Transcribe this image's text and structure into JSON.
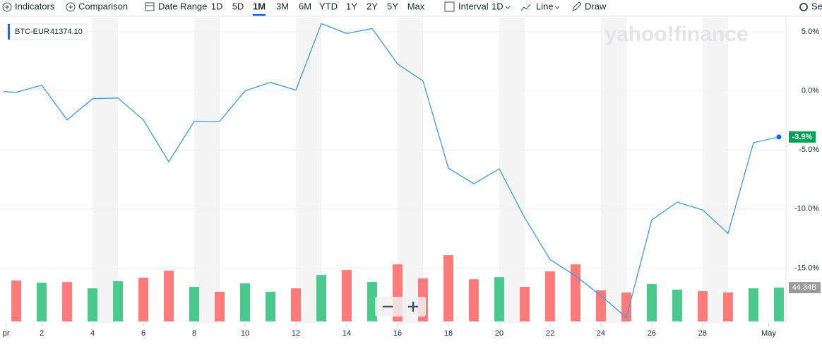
{
  "toolbar": {
    "indicators": "Indicators",
    "comparison": "Comparison",
    "date_range": "Date Range",
    "ranges": [
      "1D",
      "5D",
      "1M",
      "3M",
      "6M",
      "YTD",
      "1Y",
      "2Y",
      "5Y",
      "Max"
    ],
    "active_range": 2,
    "interval": "Interval",
    "interval_value": "1D",
    "line": "Line",
    "draw": "Draw",
    "settings": "Se"
  },
  "legend": {
    "symbol": "BTC-EUR",
    "price": "41374.10"
  },
  "watermark": "yahoo!finance",
  "chart_data": {
    "type": "line",
    "color": "#3d9be9",
    "x": [
      0.5,
      1,
      2,
      3,
      4,
      5,
      6,
      7,
      8,
      9,
      10,
      11,
      12,
      13,
      14,
      15,
      16,
      17,
      18,
      19,
      20,
      21,
      22,
      23,
      24,
      25,
      26,
      27,
      28,
      29,
      30,
      31
    ],
    "values": [
      -0.06,
      -0.12,
      0.48,
      -2.46,
      -0.66,
      -0.6,
      -2.46,
      -6.0,
      -2.58,
      -2.58,
      0,
      0.72,
      0.06,
      5.7,
      4.86,
      5.28,
      2.28,
      0.84,
      -6.54,
      -7.86,
      -6.6,
      -10.74,
      -14.28,
      -15.66,
      -17.34,
      -19.2,
      -10.92,
      -9.42,
      -10.08,
      -12.06,
      -4.38,
      -3.9
    ],
    "current": {
      "value": -3.9,
      "label": "-3.9%"
    },
    "xlim": [
      0.36,
      31.28
    ],
    "xticks": [
      {
        "value": 0.6,
        "label": "pr"
      },
      2,
      4,
      6,
      8,
      10,
      12,
      14,
      16,
      18,
      20,
      22,
      24,
      26,
      28,
      {
        "value": 30.6,
        "label": "May"
      }
    ],
    "ylim": [
      -19.7,
      6.2
    ],
    "yticks": [
      {
        "value": 5,
        "label": "5.0%"
      },
      {
        "value": 0,
        "label": "0.0%"
      },
      {
        "value": -5,
        "label": "-5.0%"
      },
      {
        "value": -10,
        "label": "-10.0%"
      },
      {
        "value": -15,
        "label": "-15.0%"
      }
    ],
    "grid": true,
    "volume": {
      "x": [
        1,
        2,
        3,
        4,
        5,
        6,
        7,
        8,
        9,
        10,
        11,
        12,
        13,
        14,
        15,
        16,
        17,
        18,
        19,
        20,
        21,
        22,
        23,
        24,
        25,
        26,
        27,
        28,
        29,
        30,
        31
      ],
      "values": [
        53.6,
        50.8,
        51.7,
        43.4,
        52.7,
        57.3,
        66.5,
        45.3,
        38.8,
        49.9,
        38.8,
        43.4,
        61.0,
        67.5,
        51.7,
        74.8,
        56.4,
        86.9,
        55.4,
        58.2,
        45.3,
        65.6,
        74.8,
        40.7,
        37.9,
        49.0,
        41.6,
        39.7,
        37.9,
        43.4,
        44.34
      ],
      "colors": [
        "#ff7b7b",
        "#4bc88c",
        "#ff7b7b",
        "#4bc88c",
        "#4bc88c",
        "#ff7b7b",
        "#ff7b7b",
        "#4bc88c",
        "#ff7b7b",
        "#4bc88c",
        "#4bc88c",
        "#ff7b7b",
        "#4bc88c",
        "#ff7b7b",
        "#4bc88c",
        "#ff7b7b",
        "#ff7b7b",
        "#ff7b7b",
        "#ff7b7b",
        "#4bc88c",
        "#ff7b7b",
        "#ff7b7b",
        "#ff7b7b",
        "#ff7b7b",
        "#ff7b7b",
        "#4bc88c",
        "#4bc88c",
        "#ff7b7b",
        "#ff7b7b",
        "#4bc88c",
        "#4bc88c"
      ],
      "ylim": [
        0,
        100
      ],
      "last_label": "44.34B"
    }
  }
}
